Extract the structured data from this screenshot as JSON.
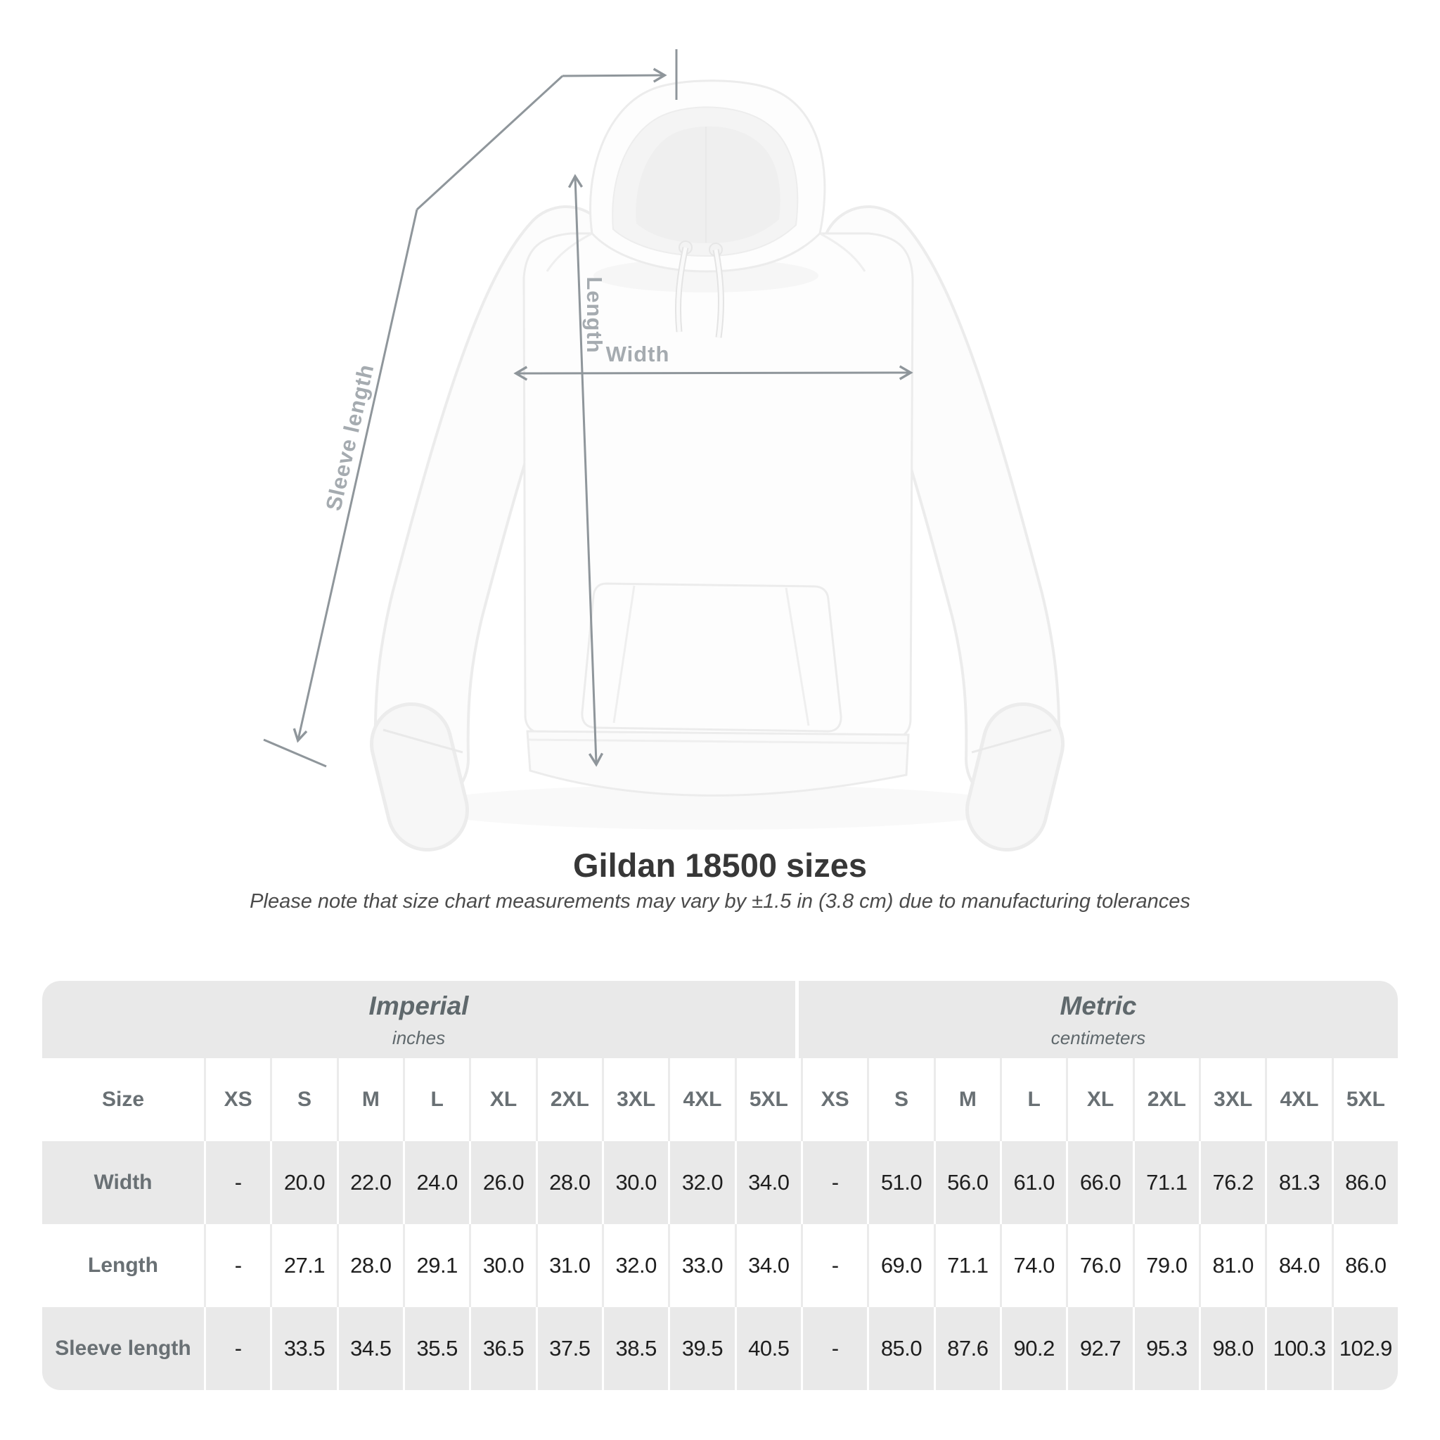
{
  "title": "Gildan 18500 sizes",
  "subtitle": "Please note that size chart measurements may vary by ±1.5 in (3.8 cm) due to manufacturing tolerances",
  "diagram": {
    "labels": {
      "length": "Length",
      "width": "Width",
      "sleeve": "Sleeve length"
    },
    "line_color": "#8f969b",
    "label_color": "#a5abb0"
  },
  "table": {
    "size_header": "Size",
    "sizes": [
      "XS",
      "S",
      "M",
      "L",
      "XL",
      "2XL",
      "3XL",
      "4XL",
      "5XL"
    ],
    "sections": [
      {
        "name": "Imperial",
        "unit": "inches"
      },
      {
        "name": "Metric",
        "unit": "centimeters"
      }
    ],
    "rows": [
      {
        "label": "Width",
        "imperial": [
          "-",
          "20.0",
          "22.0",
          "24.0",
          "26.0",
          "28.0",
          "30.0",
          "32.0",
          "34.0"
        ],
        "metric": [
          "-",
          "51.0",
          "56.0",
          "61.0",
          "66.0",
          "71.1",
          "76.2",
          "81.3",
          "86.0"
        ]
      },
      {
        "label": "Length",
        "imperial": [
          "-",
          "27.1",
          "28.0",
          "29.1",
          "30.0",
          "31.0",
          "32.0",
          "33.0",
          "34.0"
        ],
        "metric": [
          "-",
          "69.0",
          "71.1",
          "74.0",
          "76.0",
          "79.0",
          "81.0",
          "84.0",
          "86.0"
        ]
      },
      {
        "label": "Sleeve length",
        "imperial": [
          "-",
          "33.5",
          "34.5",
          "35.5",
          "36.5",
          "37.5",
          "38.5",
          "39.5",
          "40.5"
        ],
        "metric": [
          "-",
          "85.0",
          "87.6",
          "90.2",
          "92.7",
          "95.3",
          "98.0",
          "100.3",
          "102.9"
        ]
      }
    ],
    "colors": {
      "band_bg": "#e9e9e9",
      "alt_row_bg": "#e9e9e9",
      "header_text": "#697074",
      "value_text": "#1e1e1e"
    }
  },
  "chart_data": {
    "type": "table",
    "title": "Gildan 18500 sizes",
    "note": "Please note that size chart measurements may vary by ±1.5 in (3.8 cm) due to manufacturing tolerances",
    "columns": [
      "XS",
      "S",
      "M",
      "L",
      "XL",
      "2XL",
      "3XL",
      "4XL",
      "5XL"
    ],
    "units": [
      "inches",
      "centimeters"
    ],
    "rows": [
      {
        "label": "Width",
        "inches": [
          null,
          20.0,
          22.0,
          24.0,
          26.0,
          28.0,
          30.0,
          32.0,
          34.0
        ],
        "centimeters": [
          null,
          51.0,
          56.0,
          61.0,
          66.0,
          71.1,
          76.2,
          81.3,
          86.0
        ]
      },
      {
        "label": "Length",
        "inches": [
          null,
          27.1,
          28.0,
          29.1,
          30.0,
          31.0,
          32.0,
          33.0,
          34.0
        ],
        "centimeters": [
          null,
          69.0,
          71.1,
          74.0,
          76.0,
          79.0,
          81.0,
          84.0,
          86.0
        ]
      },
      {
        "label": "Sleeve length",
        "inches": [
          null,
          33.5,
          34.5,
          35.5,
          36.5,
          37.5,
          38.5,
          39.5,
          40.5
        ],
        "centimeters": [
          null,
          85.0,
          87.6,
          90.2,
          92.7,
          95.3,
          98.0,
          100.3,
          102.9
        ]
      }
    ]
  }
}
